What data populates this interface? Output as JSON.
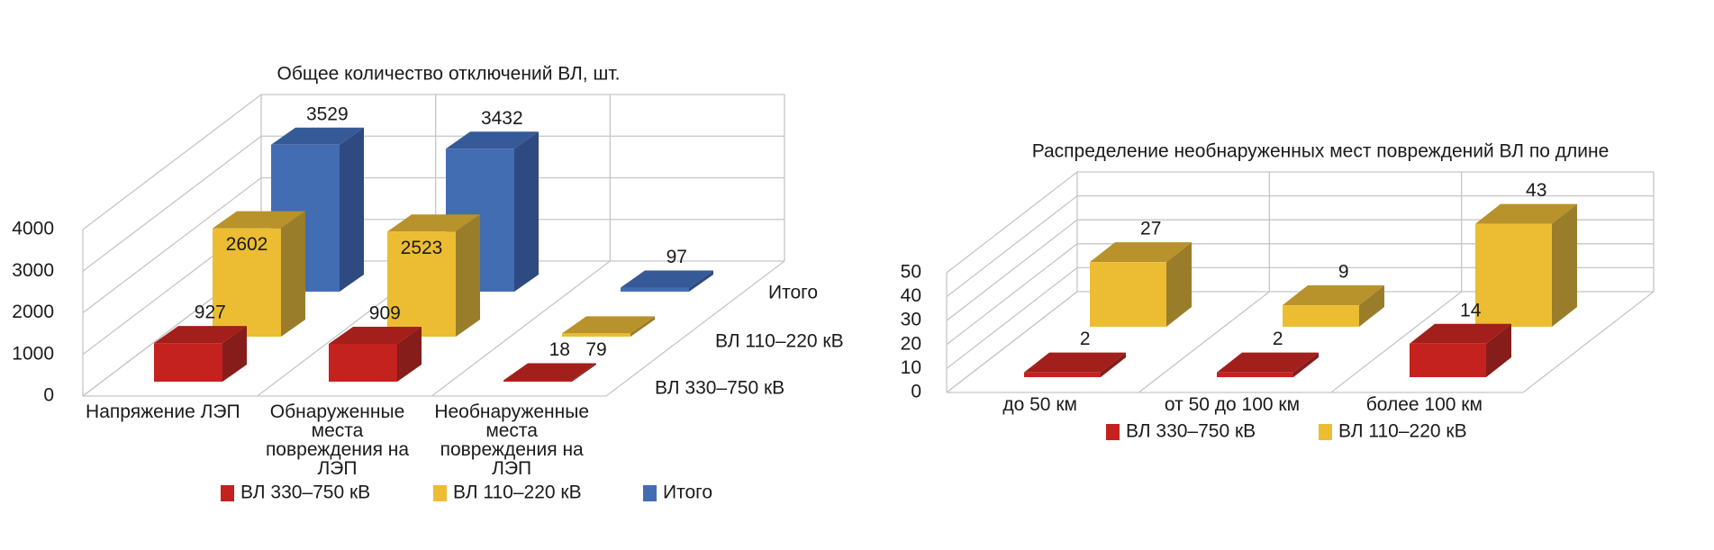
{
  "colors": {
    "red": {
      "front": "#c4221f",
      "top": "#a31f1c",
      "side": "#861d1a"
    },
    "yellow": {
      "front": "#ecbd33",
      "top": "#b8922a",
      "side": "#9a7d2a"
    },
    "blue": {
      "front": "#426db3",
      "top": "#365a98",
      "side": "#2e4a80"
    },
    "grid": "#c6c6c6"
  },
  "chart_data": [
    {
      "type": "bar",
      "style": "3d-clustered-depth",
      "title": "Общее количество отключений ВЛ, шт.",
      "categories": [
        "Напряжение ЛЭП",
        "Обнаруженные места повреждения на ЛЭП",
        "Необнаруженные места повреждения на ЛЭП"
      ],
      "series": [
        {
          "name": "ВЛ 330–750 кВ",
          "color": "red",
          "values": [
            927,
            909,
            18
          ]
        },
        {
          "name": "ВЛ 110–220 кВ",
          "color": "yellow",
          "values": [
            2602,
            2523,
            79
          ]
        },
        {
          "name": "Итого",
          "color": "blue",
          "values": [
            3529,
            3432,
            97
          ]
        }
      ],
      "yticks": [
        "0",
        "1000",
        "2000",
        "3000",
        "4000"
      ],
      "ylim": [
        0,
        4000
      ],
      "grid": true,
      "legend": "bottom"
    },
    {
      "type": "bar",
      "style": "3d-clustered-depth",
      "title": "Распределение необнаруженных мест повреждений ВЛ по длине",
      "categories": [
        "до 50 км",
        "от 50 до 100 км",
        "более 100 км"
      ],
      "series": [
        {
          "name": "ВЛ 330–750 кВ",
          "color": "red",
          "values": [
            2,
            2,
            14
          ]
        },
        {
          "name": "ВЛ 110–220 кВ",
          "color": "yellow",
          "values": [
            27,
            9,
            43
          ]
        }
      ],
      "yticks": [
        "0",
        "10",
        "20",
        "30",
        "40",
        "50"
      ],
      "ylim": [
        0,
        50
      ],
      "grid": true,
      "legend": "bottom"
    }
  ]
}
